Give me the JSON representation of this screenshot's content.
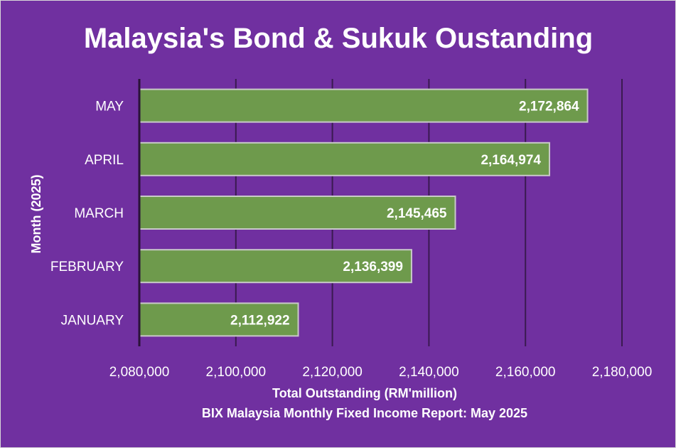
{
  "colors": {
    "background": "#7030a0",
    "bar_fill": "#6e9a4c",
    "bar_border": "#c9c9c9",
    "gridline": "#3a1a50",
    "text": "#ffffff"
  },
  "chart_data": {
    "type": "bar",
    "orientation": "horizontal",
    "title": "Malaysia's Bond & Sukuk Oustanding",
    "xlabel": "Total Outstanding (RM'million)",
    "ylabel": "Month (2025)",
    "source": "BIX Malaysia Monthly Fixed Income Report: May 2025",
    "categories": [
      "JANUARY",
      "FEBRUARY",
      "MARCH",
      "APRIL",
      "MAY"
    ],
    "values": [
      2112922,
      2136399,
      2145465,
      2164974,
      2172864
    ],
    "data_labels": [
      "2,112,922",
      "2,136,399",
      "2,145,465",
      "2,164,974",
      "2,172,864"
    ],
    "xlim": [
      2080000,
      2180000
    ],
    "x_ticks": [
      2080000,
      2100000,
      2120000,
      2140000,
      2160000,
      2180000
    ],
    "x_tick_labels": [
      "2,080,000",
      "2,100,000",
      "2,120,000",
      "2,140,000",
      "2,160,000",
      "2,180,000"
    ],
    "grid": true,
    "legend": false
  }
}
